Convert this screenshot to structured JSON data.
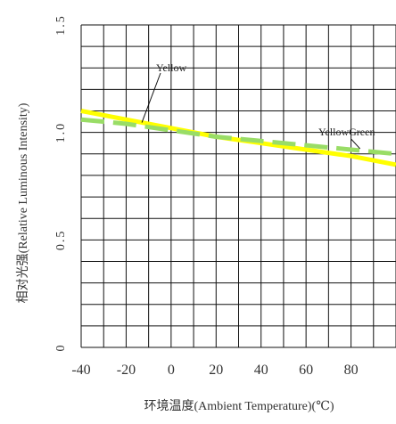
{
  "chart_data": {
    "type": "line",
    "title": "",
    "xlabel": "环境温度(Ambient  Temperature)(℃)",
    "ylabel": "相对光强(Relative Luminous Intensity)",
    "x_ticks": [
      "-40",
      "-20",
      "0",
      "20",
      "40",
      "60",
      "80"
    ],
    "y_ticks": [
      "0",
      "0.5",
      "1.0",
      "1.5"
    ],
    "xlim": [
      -40,
      100
    ],
    "ylim": [
      0,
      1.5
    ],
    "grid": true,
    "series": [
      {
        "name": "Yellow",
        "color": "#ffff00",
        "style": "solid",
        "x": [
          -40,
          -20,
          0,
          20,
          40,
          60,
          80,
          100
        ],
        "y": [
          1.1,
          1.06,
          1.02,
          0.98,
          0.95,
          0.92,
          0.89,
          0.85
        ]
      },
      {
        "name": "YellowGreen",
        "color": "#99dd66",
        "style": "dashed",
        "x": [
          -40,
          -20,
          0,
          20,
          40,
          60,
          80,
          100
        ],
        "y": [
          1.06,
          1.04,
          1.01,
          0.98,
          0.96,
          0.94,
          0.92,
          0.9
        ]
      }
    ]
  }
}
